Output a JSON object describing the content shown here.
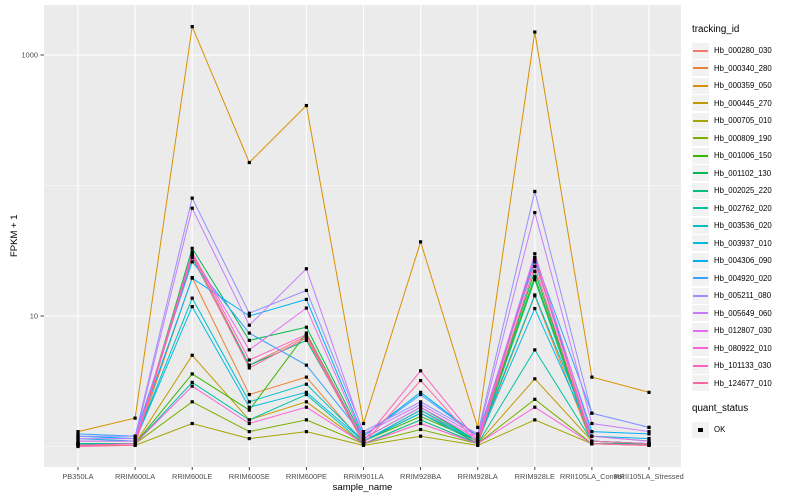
{
  "legend": {
    "tracking_title": "tracking_id",
    "quant": {
      "title": "quant_status",
      "ok_label": "OK",
      "marker": "filled-square",
      "marker_color": "#000000"
    }
  },
  "chart_data": {
    "type": "line",
    "title": "",
    "xlabel": "sample_name",
    "ylabel": "FPKM + 1",
    "y_scale": "log10",
    "y_tick_values": [
      10,
      1000
    ],
    "y_tick_labels": [
      "10",
      "1000"
    ],
    "y_minor_gridline_values": [
      1,
      100
    ],
    "ylim": [
      0.9,
      2000
    ],
    "grid": "on",
    "legend_position": "right",
    "panel_bg": "#ebebeb",
    "grid_color": "#ffffff",
    "point_color": "#000000",
    "axis_text_color": "#4d4d4d",
    "categories": [
      "PB350LA",
      "RRIM600LA",
      "RRIM600LE",
      "RRIM600SE",
      "RRIM600PE",
      "RRIM901LA",
      "RRIM928BA",
      "RRIM928LA",
      "RRIM928LE",
      "RRII105LA_Control",
      "RRII105LA_Stressed"
    ],
    "series": [
      {
        "name": "Hb_000280_030",
        "color": "#F8766D",
        "values": [
          1.05,
          1.05,
          30,
          4.2,
          7.0,
          1.1,
          1.9,
          1.05,
          28,
          1.1,
          1.05
        ]
      },
      {
        "name": "Hb_000340_280",
        "color": "#EB8335",
        "values": [
          1.05,
          1.05,
          19.7,
          2.5,
          3.4,
          1.05,
          1.5,
          1.05,
          14.3,
          1.05,
          1.05
        ]
      },
      {
        "name": "Hb_000359_050",
        "color": "#D89000",
        "values": [
          1.3,
          1.65,
          1650,
          150,
          410,
          1.5,
          37,
          1.4,
          1500,
          3.4,
          2.6
        ]
      },
      {
        "name": "Hb_000445_270",
        "color": "#C09B00",
        "values": [
          1.05,
          1.05,
          5.0,
          1.6,
          2.2,
          1.05,
          1.6,
          1.05,
          3.3,
          1.1,
          1.05
        ]
      },
      {
        "name": "Hb_000705_010",
        "color": "#A3A500",
        "values": [
          1.02,
          1.02,
          1.5,
          1.15,
          1.3,
          1.02,
          1.2,
          1.02,
          1.6,
          1.05,
          1.02
        ]
      },
      {
        "name": "Hb_000809_190",
        "color": "#7CAE00",
        "values": [
          1.05,
          1.05,
          2.2,
          1.3,
          1.6,
          1.05,
          1.35,
          1.05,
          2.3,
          1.05,
          1.05
        ]
      },
      {
        "name": "Hb_001006_150",
        "color": "#39B600",
        "values": [
          1.05,
          1.05,
          3.6,
          1.9,
          7.4,
          1.1,
          1.7,
          1.1,
          20,
          1.1,
          1.05
        ]
      },
      {
        "name": "Hb_001102_130",
        "color": "#00BB4E",
        "values": [
          1.05,
          1.05,
          33,
          6.5,
          8.2,
          1.15,
          2.0,
          1.1,
          22,
          1.1,
          1.05
        ]
      },
      {
        "name": "Hb_002025_220",
        "color": "#00BF7D",
        "values": [
          1.05,
          1.05,
          28,
          4.2,
          6.5,
          1.1,
          1.8,
          1.05,
          19,
          1.05,
          1.05
        ]
      },
      {
        "name": "Hb_002762_020",
        "color": "#00C1A3",
        "values": [
          1.05,
          1.05,
          3.1,
          1.6,
          2.5,
          1.05,
          1.6,
          1.05,
          5.5,
          1.1,
          1.05
        ]
      },
      {
        "name": "Hb_003536_020",
        "color": "#00BFC4",
        "values": [
          1.1,
          1.1,
          13.7,
          2.2,
          3.0,
          1.1,
          1.9,
          1.1,
          14.5,
          1.2,
          1.1
        ]
      },
      {
        "name": "Hb_003937_010",
        "color": "#00BAE0",
        "values": [
          1.15,
          1.1,
          11.8,
          2.0,
          2.6,
          1.1,
          1.8,
          1.1,
          11.4,
          1.2,
          1.15
        ]
      },
      {
        "name": "Hb_004306_090",
        "color": "#00B0F6",
        "values": [
          1.2,
          1.15,
          19.5,
          10,
          13.4,
          1.2,
          2.6,
          1.2,
          26,
          1.3,
          1.25
        ]
      },
      {
        "name": "Hb_004920_020",
        "color": "#35A2FF",
        "values": [
          1.25,
          1.2,
          26,
          7.4,
          4.2,
          1.2,
          2.5,
          1.2,
          28,
          1.8,
          1.4
        ]
      },
      {
        "name": "Hb_005211_080",
        "color": "#9590FF",
        "values": [
          1.2,
          1.2,
          80,
          10.5,
          15.7,
          1.3,
          2.2,
          1.25,
          90,
          1.8,
          1.4
        ]
      },
      {
        "name": "Hb_005649_060",
        "color": "#C77CFF",
        "values": [
          1.15,
          1.15,
          67,
          8.5,
          23,
          1.25,
          2.1,
          1.2,
          62,
          1.5,
          1.3
        ]
      },
      {
        "name": "Hb_012807_030",
        "color": "#E76BF3",
        "values": [
          1.1,
          1.1,
          30,
          5.5,
          11.5,
          1.15,
          2.0,
          1.15,
          30,
          1.2,
          1.1
        ]
      },
      {
        "name": "Hb_080922_010",
        "color": "#FA62DB",
        "values": [
          1.02,
          1.05,
          2.9,
          1.5,
          2.0,
          1.05,
          1.5,
          1.05,
          2.0,
          1.05,
          1.02
        ]
      },
      {
        "name": "Hb_101133_030",
        "color": "#FF61C3",
        "values": [
          1.02,
          1.05,
          31,
          4.6,
          7.2,
          1.1,
          3.8,
          1.1,
          27,
          1.1,
          1.05
        ]
      },
      {
        "name": "Hb_124677_010",
        "color": "#FF67A4",
        "values": [
          1.0,
          1.02,
          29,
          4.0,
          6.8,
          1.05,
          3.2,
          1.05,
          24,
          1.05,
          1.02
        ]
      }
    ]
  }
}
